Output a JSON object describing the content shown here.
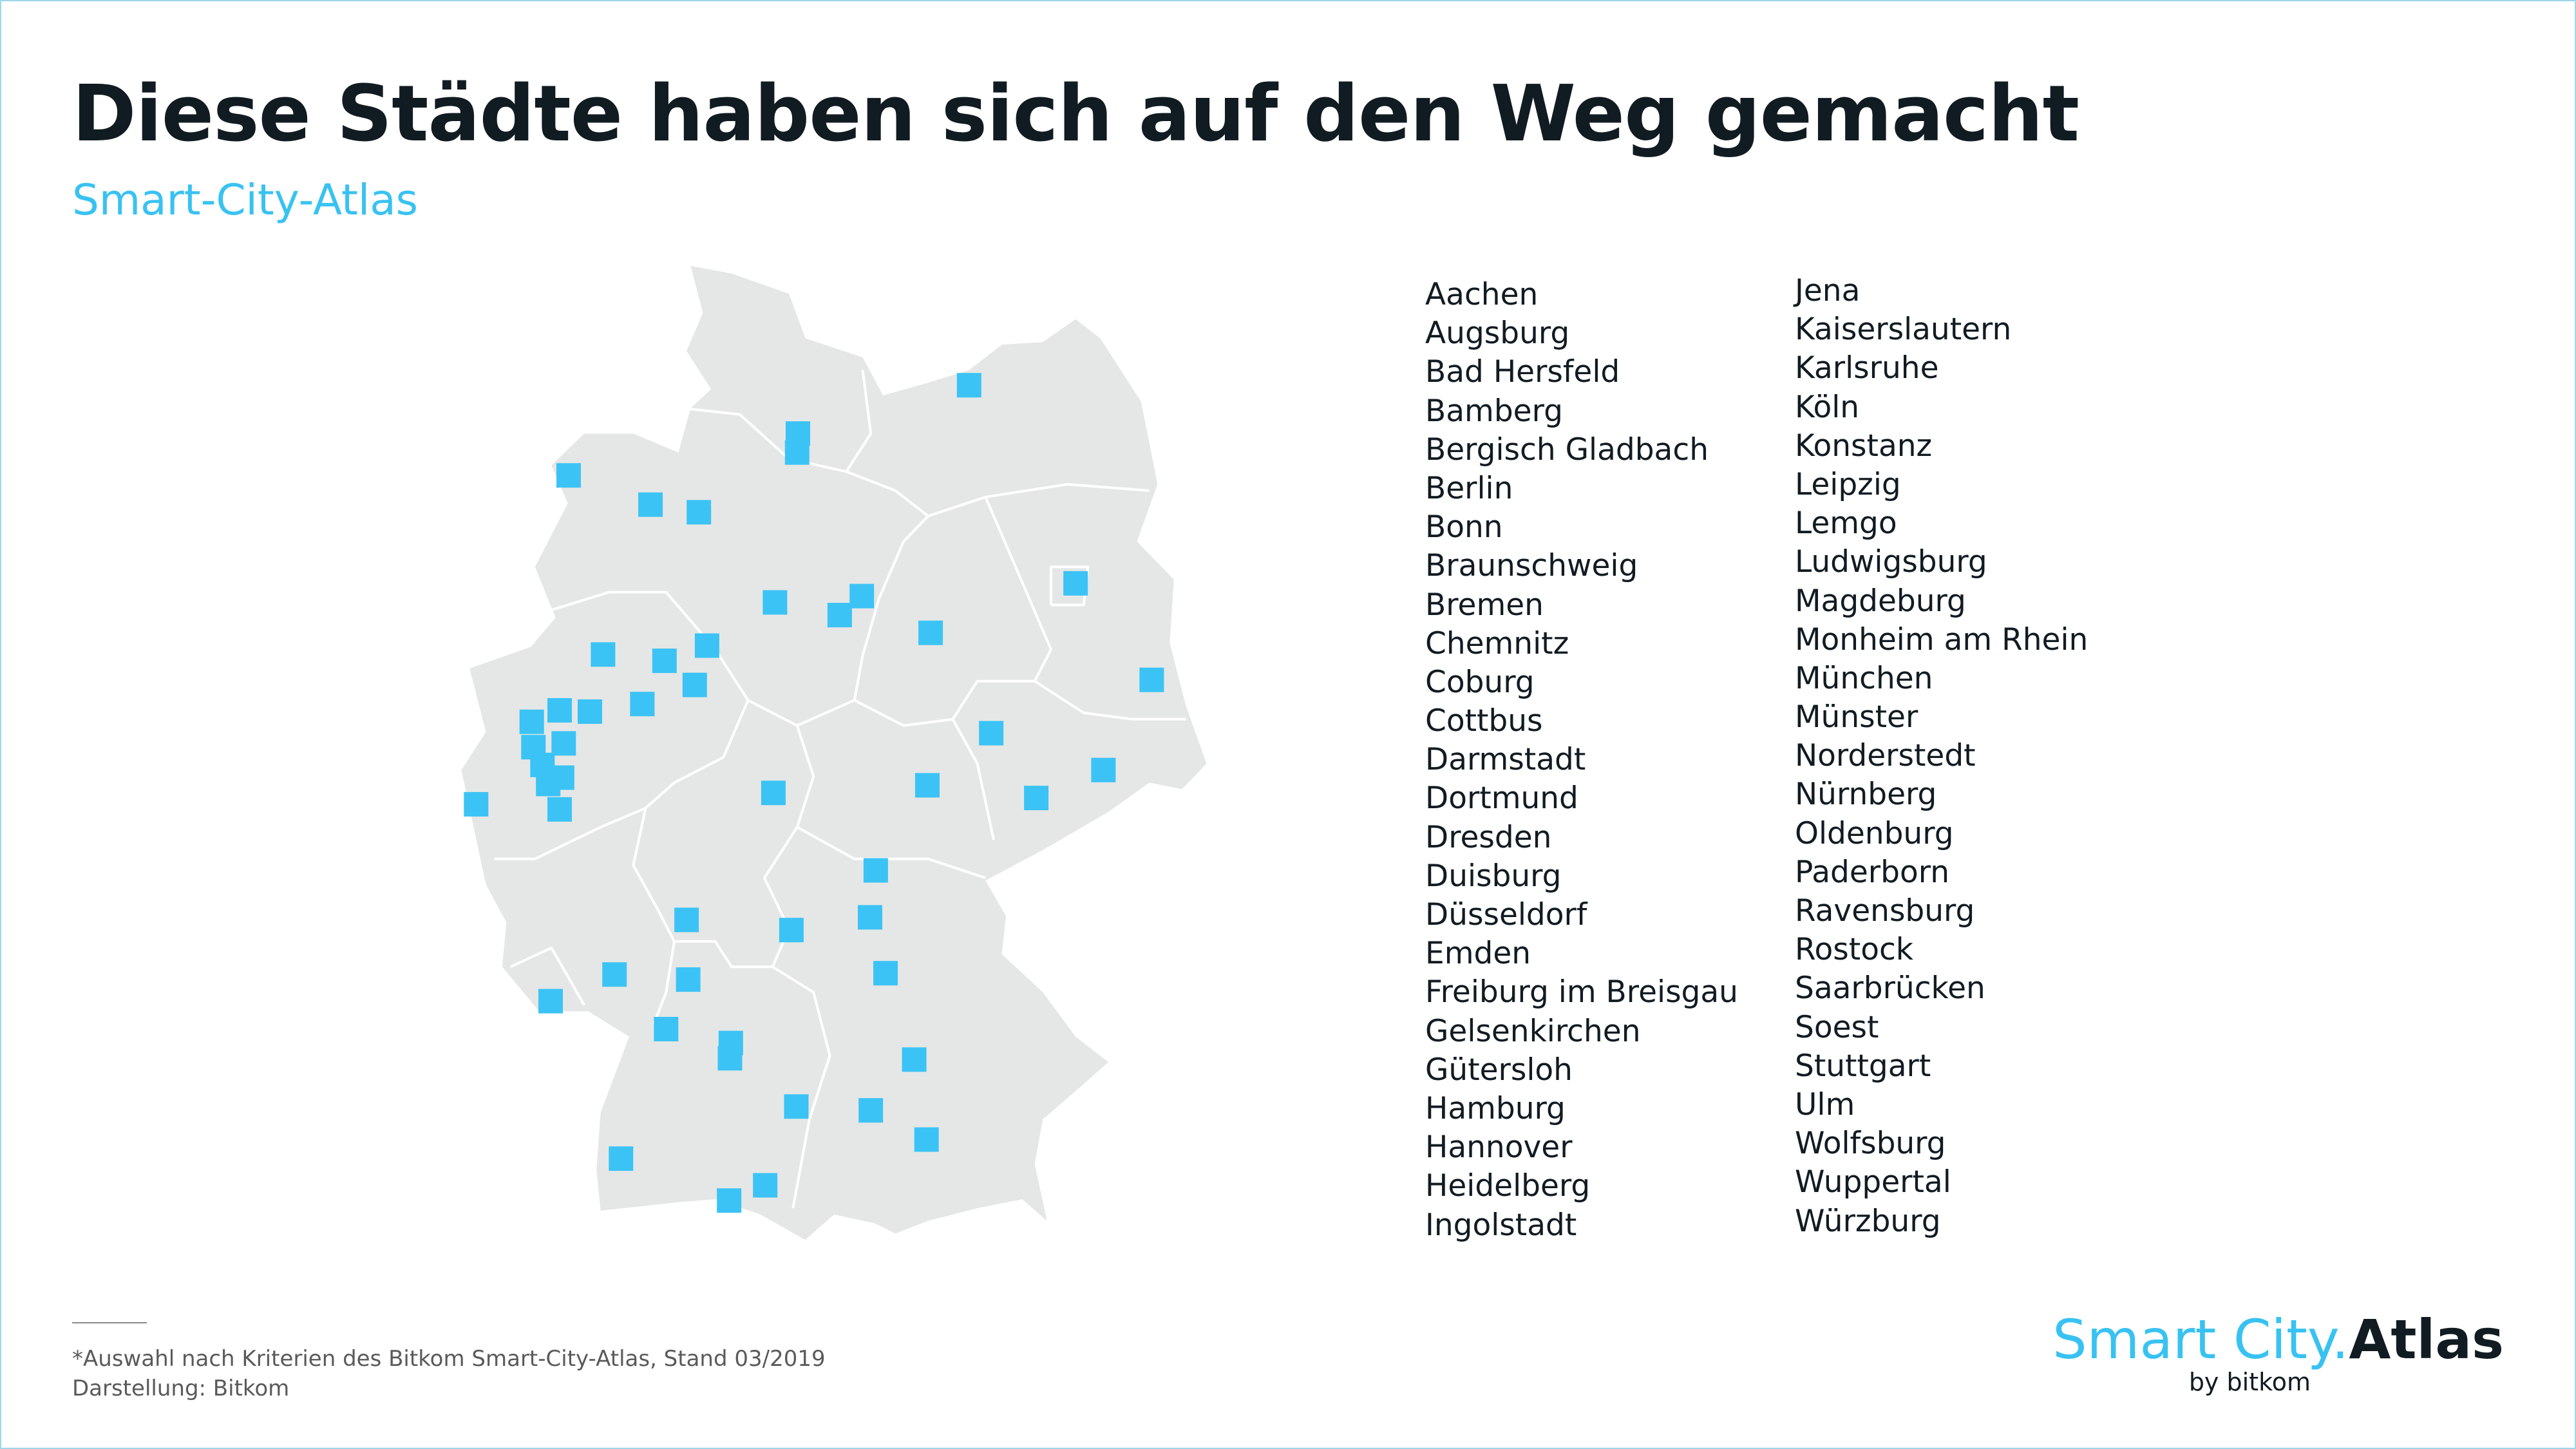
{
  "title": "Diese Städte haben sich auf den Weg gemacht",
  "subtitle": "Smart-City-Atlas",
  "cities_col1": [
    "Aachen",
    "Augsburg",
    "Bad Hersfeld",
    "Bamberg",
    "Bergisch Gladbach",
    "Berlin",
    "Bonn",
    "Braunschweig",
    "Bremen",
    "Chemnitz",
    "Coburg",
    "Cottbus",
    "Darmstadt",
    "Dortmund",
    "Dresden",
    "Duisburg",
    "Düsseldorf",
    "Emden",
    "Freiburg im Breisgau",
    "Gelsenkirchen",
    "Gütersloh",
    "Hamburg",
    "Hannover",
    "Heidelberg",
    "Ingolstadt"
  ],
  "cities_col2": [
    "Jena",
    "Kaiserslautern",
    "Karlsruhe",
    "Köln",
    "Konstanz",
    "Leipzig",
    "Lemgo",
    "Ludwigsburg",
    "Magdeburg",
    "Monheim am Rhein",
    "München",
    "Münster",
    "Norderstedt",
    "Nürnberg",
    "Oldenburg",
    "Paderborn",
    "Ravensburg",
    "Rostock",
    "Saarbrücken",
    "Soest",
    "Stuttgart",
    "Ulm",
    "Wolfsburg",
    "Wuppertal",
    "Würzburg"
  ],
  "footnote": "*Auswahl nach Kriterien des Bitkom Smart-City-Atlas, Stand 03/2019",
  "credit": "Darstellung: Bitkom",
  "logo": {
    "smart": "Smart City",
    "dot": ".",
    "atlas": "Atlas",
    "by": "by bitkom"
  },
  "colors": {
    "marker": "#3cc3f5",
    "land": "#e4e7e6",
    "border": "#ffffff",
    "title": "#111b22",
    "accent": "#38c2f2"
  },
  "markers": [
    {
      "city": "Rostock",
      "lon": 12.1,
      "lat": 54.08
    },
    {
      "city": "Hamburg",
      "lon": 10.0,
      "lat": 53.55
    },
    {
      "city": "Norderstedt",
      "lon": 10.01,
      "lat": 53.7
    },
    {
      "city": "Emden",
      "lon": 7.21,
      "lat": 53.37
    },
    {
      "city": "Oldenburg",
      "lon": 8.21,
      "lat": 53.14
    },
    {
      "city": "Bremen",
      "lon": 8.8,
      "lat": 53.08
    },
    {
      "city": "Berlin",
      "lon": 13.4,
      "lat": 52.52
    },
    {
      "city": "Wolfsburg",
      "lon": 10.79,
      "lat": 52.42
    },
    {
      "city": "Hannover",
      "lon": 9.73,
      "lat": 52.37
    },
    {
      "city": "Braunschweig",
      "lon": 10.52,
      "lat": 52.27
    },
    {
      "city": "Magdeburg",
      "lon": 11.63,
      "lat": 52.13
    },
    {
      "city": "Münster",
      "lon": 7.63,
      "lat": 51.96
    },
    {
      "city": "Gütersloh",
      "lon": 8.38,
      "lat": 51.91
    },
    {
      "city": "Lemgo",
      "lon": 8.9,
      "lat": 52.03
    },
    {
      "city": "Paderborn",
      "lon": 8.75,
      "lat": 51.72
    },
    {
      "city": "Soest",
      "lon": 8.11,
      "lat": 51.57
    },
    {
      "city": "Gelsenkirchen",
      "lon": 7.1,
      "lat": 51.52
    },
    {
      "city": "Dortmund",
      "lon": 7.47,
      "lat": 51.51
    },
    {
      "city": "Duisburg",
      "lon": 6.76,
      "lat": 51.43
    },
    {
      "city": "Wuppertal",
      "lon": 7.15,
      "lat": 51.26
    },
    {
      "city": "Düsseldorf",
      "lon": 6.78,
      "lat": 51.23
    },
    {
      "city": "Monheim am Rhein",
      "lon": 6.89,
      "lat": 51.09
    },
    {
      "city": "Bergisch Gladbach",
      "lon": 7.13,
      "lat": 50.99
    },
    {
      "city": "Köln",
      "lon": 6.96,
      "lat": 50.94
    },
    {
      "city": "Aachen",
      "lon": 6.08,
      "lat": 50.78
    },
    {
      "city": "Bonn",
      "lon": 7.1,
      "lat": 50.74
    },
    {
      "city": "Leipzig",
      "lon": 12.37,
      "lat": 51.34
    },
    {
      "city": "Cottbus",
      "lon": 14.33,
      "lat": 51.76
    },
    {
      "city": "Dresden",
      "lon": 13.74,
      "lat": 51.05
    },
    {
      "city": "Chemnitz",
      "lon": 12.92,
      "lat": 50.83
    },
    {
      "city": "Jena",
      "lon": 11.59,
      "lat": 50.93
    },
    {
      "city": "Bad Hersfeld",
      "lon": 9.71,
      "lat": 50.87
    },
    {
      "city": "Coburg",
      "lon": 10.96,
      "lat": 50.26
    },
    {
      "city": "Bamberg",
      "lon": 10.89,
      "lat": 49.89
    },
    {
      "city": "Würzburg",
      "lon": 9.93,
      "lat": 49.79
    },
    {
      "city": "Darmstadt",
      "lon": 8.65,
      "lat": 49.87
    },
    {
      "city": "Nürnberg",
      "lon": 11.08,
      "lat": 49.45
    },
    {
      "city": "Kaiserslautern",
      "lon": 7.77,
      "lat": 49.44
    },
    {
      "city": "Heidelberg",
      "lon": 8.67,
      "lat": 49.4
    },
    {
      "city": "Saarbrücken",
      "lon": 6.99,
      "lat": 49.23
    },
    {
      "city": "Karlsruhe",
      "lon": 8.4,
      "lat": 49.01
    },
    {
      "city": "Ludwigsburg",
      "lon": 9.19,
      "lat": 48.9
    },
    {
      "city": "Stuttgart",
      "lon": 9.18,
      "lat": 48.78
    },
    {
      "city": "Ingolstadt",
      "lon": 11.43,
      "lat": 48.77
    },
    {
      "city": "Ulm",
      "lon": 9.99,
      "lat": 48.4
    },
    {
      "city": "Augsburg",
      "lon": 10.9,
      "lat": 48.37
    },
    {
      "city": "München",
      "lon": 11.58,
      "lat": 48.14
    },
    {
      "city": "Freiburg im Breisgau",
      "lon": 7.85,
      "lat": 47.99
    },
    {
      "city": "Ravensburg",
      "lon": 9.61,
      "lat": 47.78
    },
    {
      "city": "Konstanz",
      "lon": 9.17,
      "lat": 47.66
    }
  ]
}
